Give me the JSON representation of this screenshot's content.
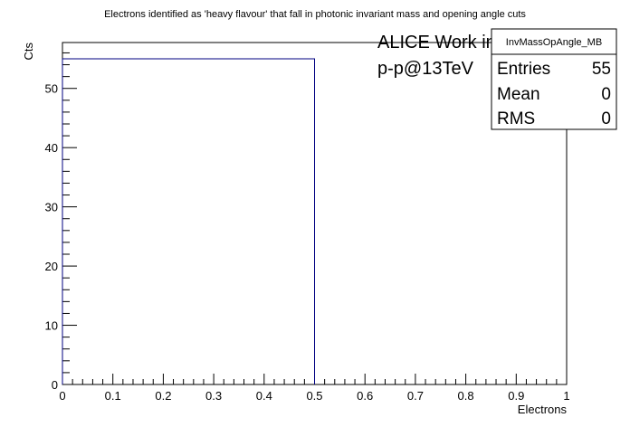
{
  "chart_data": {
    "type": "bar",
    "title": "Electrons identified as 'heavy flavour' that fall in photonic invariant mass and opening angle cuts",
    "xlabel": "Electrons",
    "ylabel": "Cts",
    "xlim": [
      0,
      1
    ],
    "ylim": [
      0,
      57.75
    ],
    "x_ticks": [
      0,
      0.1,
      0.2,
      0.3,
      0.4,
      0.5,
      0.6,
      0.7,
      0.8,
      0.9,
      1
    ],
    "x_tick_labels": [
      "0",
      "0.1",
      "0.2",
      "0.3",
      "0.4",
      "0.5",
      "0.6",
      "0.7",
      "0.8",
      "0.9",
      "1"
    ],
    "y_ticks": [
      0,
      10,
      20,
      30,
      40,
      50
    ],
    "y_tick_labels": [
      "0",
      "10",
      "20",
      "30",
      "40",
      "50"
    ],
    "bins": [
      {
        "low": 0.0,
        "high": 0.5,
        "value": 55
      },
      {
        "low": 0.5,
        "high": 1.0,
        "value": 0
      }
    ],
    "line_color": "#000080",
    "grid": false
  },
  "stats_box": {
    "title": "InvMassOpAngle_MB",
    "rows": [
      {
        "label": "Entries",
        "value": "55"
      },
      {
        "label": "Mean",
        "value": "0"
      },
      {
        "label": "RMS",
        "value": "0"
      }
    ]
  },
  "annotations": {
    "line1": "ALICE Work in Progress",
    "line2": "p-p@13TeV"
  }
}
